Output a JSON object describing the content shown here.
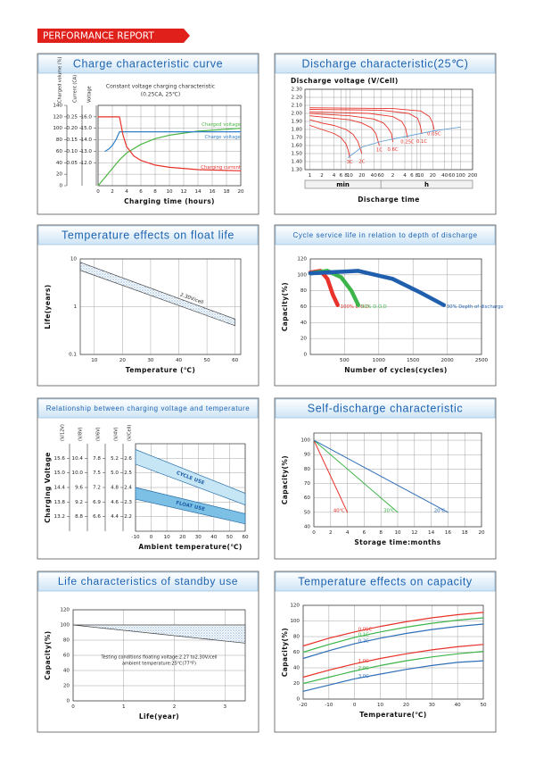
{
  "header": {
    "title": "PERFORMANCE REPORT"
  },
  "chart_data": [
    {
      "type": "line",
      "title": "Charge characteristic curve",
      "subtitle": [
        "Constant voltage charging characteristic",
        "(0.25CA, 25℃)"
      ],
      "xlabel": "Charging time (hours)",
      "xlim": [
        0,
        20
      ],
      "xticks": [
        0,
        2,
        4,
        6,
        8,
        10,
        12,
        14,
        16,
        18,
        20
      ],
      "ylim": [
        0,
        140
      ],
      "yticks": [
        0,
        20,
        40,
        60,
        80,
        100,
        120,
        140
      ],
      "yunit": "Charged volume (%)",
      "y2lim": [
        -0.05,
        0.3
      ],
      "y2ticks": [
        0.05,
        {
          "value": 0.1,
          "label": "0.10"
        },
        0.15,
        {
          "value": 0.2,
          "label": "0.20"
        },
        0.25
      ],
      "y2unit": "Current (CA)",
      "y3lim": [
        10,
        17
      ],
      "y3ticks": [
        {
          "value": 12,
          "label": "12.0"
        },
        {
          "value": 13,
          "label": "13.0"
        },
        {
          "value": 14,
          "label": "14.0"
        },
        {
          "value": 15,
          "label": "15.0"
        },
        {
          "value": 16,
          "label": "16.0"
        }
      ],
      "y3unit": "Voltage",
      "grid": true,
      "series": [
        {
          "name": "Charged voltage",
          "color": "#4bb543",
          "axis": "y",
          "x": [
            0,
            1,
            2,
            3,
            4,
            6,
            8,
            10,
            14,
            20
          ],
          "values": [
            0,
            15,
            30,
            45,
            57,
            72,
            82,
            88,
            95,
            100
          ]
        },
        {
          "name": "Charge voltage",
          "color": "#2f7fc8",
          "axis": "y3",
          "x": [
            1,
            1.5,
            2,
            2.5,
            3,
            20
          ],
          "values": [
            13.0,
            13.2,
            13.5,
            14.0,
            14.7,
            14.7
          ]
        },
        {
          "name": "Charging current",
          "color": "#e8322a",
          "axis": "y2",
          "x": [
            0,
            3,
            3.5,
            4,
            5,
            6,
            8,
            10,
            14,
            20
          ],
          "values": [
            0.25,
            0.25,
            0.17,
            0.12,
            0.08,
            0.06,
            0.04,
            0.03,
            0.02,
            0.015
          ]
        }
      ]
    },
    {
      "type": "line",
      "title": "Discharge characteristic(25℃)",
      "ylabel": "Discharge voltage (V/Cell)",
      "xlabel": "Discharge time",
      "xunits": [
        "min",
        "h"
      ],
      "xlog": true,
      "xlim": [
        0.75,
        12000
      ],
      "xticks": [
        1,
        2,
        4,
        6,
        8,
        10,
        20,
        40,
        60,
        {
          "value": 120,
          "label": "2"
        },
        {
          "value": 240,
          "label": "4"
        },
        {
          "value": 360,
          "label": "6"
        },
        {
          "value": 480,
          "label": "8"
        },
        {
          "value": 600,
          "label": "10"
        },
        {
          "value": 1200,
          "label": "20"
        },
        {
          "value": 2400,
          "label": "40"
        },
        {
          "value": 3600,
          "label": "60"
        },
        {
          "value": 6000,
          "label": "100"
        },
        {
          "value": 12000,
          "label": "200"
        }
      ],
      "ylim": [
        1.3,
        2.3
      ],
      "yticks": [
        {
          "value": 1.3,
          "label": "1.30"
        },
        {
          "value": 1.4,
          "label": "1.40"
        },
        {
          "value": 1.5,
          "label": "1.50"
        },
        {
          "value": 1.6,
          "label": "1.60"
        },
        {
          "value": 1.7,
          "label": "1.70"
        },
        {
          "value": 1.8,
          "label": "1.80"
        },
        {
          "value": 1.9,
          "label": "1.90"
        },
        {
          "value": 2.0,
          "label": "2.00"
        },
        {
          "value": 2.1,
          "label": "2.10"
        },
        {
          "value": 2.2,
          "label": "2.20"
        },
        {
          "value": 2.3,
          "label": "2.30"
        }
      ],
      "grid": true,
      "series": [
        {
          "name": "3C",
          "color": "#e8322a",
          "x": [
            1,
            2,
            4,
            6,
            8,
            9,
            10
          ],
          "values": [
            1.85,
            1.8,
            1.75,
            1.7,
            1.62,
            1.55,
            1.45
          ]
        },
        {
          "name": "2C",
          "color": "#e8322a",
          "x": [
            1,
            2,
            4,
            8,
            12,
            16,
            20
          ],
          "values": [
            1.92,
            1.88,
            1.85,
            1.8,
            1.74,
            1.65,
            1.5
          ]
        },
        {
          "name": "1C",
          "color": "#e8322a",
          "x": [
            1,
            4,
            10,
            20,
            35,
            45,
            55
          ],
          "values": [
            1.97,
            1.94,
            1.92,
            1.88,
            1.82,
            1.75,
            1.6
          ]
        },
        {
          "name": "0.6C",
          "color": "#e8322a",
          "x": [
            1,
            10,
            40,
            70,
            90,
            110,
            120
          ],
          "values": [
            2.0,
            1.97,
            1.93,
            1.88,
            1.82,
            1.75,
            1.65
          ]
        },
        {
          "name": "0.25C",
          "color": "#e8322a",
          "x": [
            1,
            30,
            120,
            200,
            250,
            280
          ],
          "values": [
            2.02,
            2.0,
            1.96,
            1.9,
            1.82,
            1.7
          ]
        },
        {
          "name": "0.1C",
          "color": "#e8322a",
          "x": [
            1,
            60,
            300,
            500,
            580,
            640
          ],
          "values": [
            2.05,
            2.04,
            2.0,
            1.94,
            1.85,
            1.75
          ]
        },
        {
          "name": "0.05C",
          "color": "#e8322a",
          "x": [
            1,
            120,
            600,
            1000,
            1200,
            1300
          ],
          "values": [
            2.07,
            2.06,
            2.03,
            1.96,
            1.88,
            1.8
          ]
        },
        {
          "color": "#5b9bd5",
          "x": [
            9,
            20,
            60,
            300,
            1200,
            6000
          ],
          "values": [
            1.45,
            1.58,
            1.65,
            1.72,
            1.78,
            1.83
          ]
        }
      ]
    },
    {
      "type": "line",
      "title": "Temperature effects on float life",
      "xlabel": "Temperature (℃)",
      "ylabel": "Life(years)",
      "ylog": true,
      "xlim": [
        5,
        62
      ],
      "xticks": [
        10,
        20,
        30,
        40,
        50,
        60
      ],
      "ylim": [
        0.1,
        10
      ],
      "yticks": [
        0.1,
        1,
        10
      ],
      "grid": true,
      "series": [
        {
          "name": "2.30V/cell",
          "color": "#3b7fc4",
          "style": "dotted",
          "x": [
            5,
            60
          ],
          "upper": [
            8.5,
            0.55
          ],
          "lower": [
            5.8,
            0.4
          ]
        }
      ]
    },
    {
      "type": "line",
      "title": "Cycle service life in relation to depth of discharge",
      "xlabel": "Number of cycles(cycles)",
      "ylabel": "Capacity(%)",
      "xlim": [
        0,
        2500
      ],
      "xticks": [
        500,
        1000,
        1500,
        2000,
        2500
      ],
      "ylim": [
        0,
        120
      ],
      "yticks": [
        0,
        20,
        40,
        60,
        80,
        100,
        120
      ],
      "grid": true,
      "series": [
        {
          "name": "100% D.O.D",
          "color": "#e8322a",
          "x": [
            0,
            150,
            250,
            330,
            400
          ],
          "values": [
            103,
            105,
            95,
            75,
            62
          ]
        },
        {
          "name": "50% D.O.D",
          "color": "#3db54a",
          "x": [
            0,
            250,
            450,
            600,
            700
          ],
          "values": [
            102,
            105,
            97,
            80,
            62
          ]
        },
        {
          "name": "30% Depth of discharge",
          "color": "#1f5fae",
          "x": [
            0,
            700,
            1200,
            1600,
            1950
          ],
          "values": [
            102,
            105,
            95,
            78,
            62
          ]
        }
      ]
    },
    {
      "type": "line",
      "title": "Relationship between charging voltage and temperature",
      "xlabel": "Ambient temperature(℃)",
      "ylabel": "Charging Voltage",
      "xlim": [
        -10,
        60
      ],
      "xticks": [
        -10,
        0,
        10,
        20,
        30,
        40,
        50,
        60
      ],
      "ylim": [
        2.1,
        2.7
      ],
      "yticks": [
        2.2,
        2.3,
        2.4,
        2.5,
        2.6
      ],
      "yunit": "(V/Cell)",
      "y2lim": [
        4.2,
        5.4
      ],
      "y2ticks": [
        4.4,
        4.6,
        4.8,
        {
          "value": 5.0,
          "label": "5.0"
        },
        5.2
      ],
      "y2unit": "(V/4V)",
      "y3lim": [
        6.3,
        8.1
      ],
      "y3ticks": [
        6.6,
        6.9,
        7.2,
        7.5,
        7.8
      ],
      "y3unit": "(V/6V)",
      "y4lim": [
        8.4,
        10.8
      ],
      "y4ticks": [
        8.8,
        9.2,
        9.6,
        {
          "value": 10.0,
          "label": "10.0"
        },
        10.4
      ],
      "y4unit": "(V/8V)",
      "y5lim": [
        12.6,
        16.2
      ],
      "y5ticks": [
        13.2,
        13.8,
        14.4,
        {
          "value": 15.0,
          "label": "15.0"
        },
        15.6
      ],
      "y5unit": "(V/12V)",
      "grid": true,
      "series": [
        {
          "name": "CYCLE USE",
          "color": "#c6e6f5",
          "x": [
            -10,
            60
          ],
          "upper": [
            2.66,
            2.36
          ],
          "lower": [
            2.56,
            2.28
          ]
        },
        {
          "name": "FLOAT USE",
          "color": "#7cc0e6",
          "x": [
            -10,
            60
          ],
          "upper": [
            2.4,
            2.22
          ],
          "lower": [
            2.32,
            2.15
          ]
        }
      ]
    },
    {
      "type": "line",
      "title": "Self-discharge characteristic",
      "xlabel": "Storage time:months",
      "ylabel": "Capacity(%)",
      "xlim": [
        0,
        20
      ],
      "xticks": [
        0,
        2,
        4,
        6,
        8,
        10,
        12,
        14,
        16,
        18,
        20
      ],
      "ylim": [
        40,
        105
      ],
      "yticks": [
        40,
        50,
        60,
        70,
        80,
        90,
        100
      ],
      "grid": true,
      "series": [
        {
          "name": "40℃",
          "color": "#e8322a",
          "x": [
            0,
            4
          ],
          "values": [
            100,
            50
          ]
        },
        {
          "name": "30℃",
          "color": "#3db54a",
          "x": [
            0,
            10
          ],
          "values": [
            100,
            50
          ]
        },
        {
          "name": "20℃",
          "color": "#2f6fb8",
          "x": [
            0,
            16
          ],
          "values": [
            100,
            50
          ]
        }
      ]
    },
    {
      "type": "line",
      "title": "Life characteristics of standby use",
      "xlabel": "Life(year)",
      "ylabel": "Capacity(%)",
      "notes": [
        "Testing conditions floating voltage:2.27 to2.30V/cell",
        "ambient temperature:25℃(77°F)"
      ],
      "xlim": [
        0,
        3.4
      ],
      "xticks": [
        0,
        1,
        2,
        3
      ],
      "ylim": [
        0,
        120
      ],
      "yticks": [
        0,
        20,
        40,
        60,
        80,
        100,
        120
      ],
      "grid": true,
      "series": [
        {
          "color": "#3b7fc4",
          "style": "dotted",
          "x": [
            0,
            3.4
          ],
          "upper": [
            100,
            100
          ],
          "lower": [
            100,
            76
          ]
        }
      ]
    },
    {
      "type": "line",
      "title": "Temperature effects on capacity",
      "xlabel": "Temperature(℃)",
      "ylabel": "Capacity(%)",
      "xlim": [
        -20,
        50
      ],
      "xticks": [
        -20,
        -10,
        0,
        10,
        20,
        30,
        40,
        50
      ],
      "ylim": [
        0,
        120
      ],
      "yticks": [
        0,
        20,
        40,
        60,
        80,
        100,
        120
      ],
      "grid": true,
      "series": [
        {
          "name": "0.05C",
          "color": "#e8322a",
          "x": [
            -20,
            -10,
            0,
            10,
            20,
            30,
            40,
            50
          ],
          "values": [
            68,
            78,
            86,
            93,
            99,
            104,
            108,
            111
          ]
        },
        {
          "name": "0.1C",
          "color": "#3db54a",
          "x": [
            -20,
            -10,
            0,
            10,
            20,
            30,
            40,
            50
          ],
          "values": [
            60,
            70,
            79,
            86,
            92,
            97,
            101,
            104
          ]
        },
        {
          "name": "0.2C",
          "color": "#2f6fb8",
          "x": [
            -20,
            -10,
            0,
            10,
            20,
            30,
            40,
            50
          ],
          "values": [
            52,
            62,
            71,
            78,
            84,
            89,
            93,
            96
          ]
        },
        {
          "name": "1.0C",
          "color": "#e8322a",
          "x": [
            -20,
            -10,
            0,
            10,
            20,
            30,
            40,
            50
          ],
          "values": [
            28,
            37,
            45,
            52,
            58,
            63,
            67,
            70
          ]
        },
        {
          "name": "2.0C",
          "color": "#3db54a",
          "x": [
            -20,
            -10,
            0,
            10,
            20,
            30,
            40,
            50
          ],
          "values": [
            20,
            28,
            36,
            43,
            49,
            54,
            58,
            61
          ]
        },
        {
          "name": "3.0C",
          "color": "#2f6fb8",
          "x": [
            -20,
            -10,
            0,
            10,
            20,
            30,
            40,
            50
          ],
          "values": [
            10,
            18,
            26,
            32,
            38,
            43,
            47,
            49
          ]
        }
      ]
    }
  ]
}
